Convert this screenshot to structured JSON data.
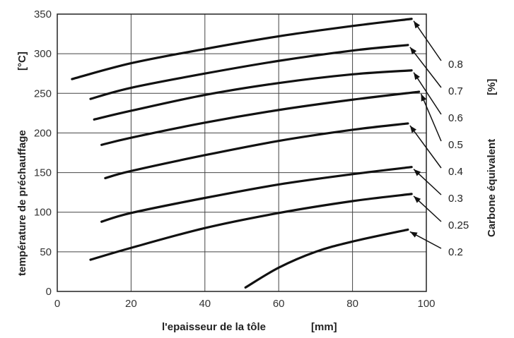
{
  "chart_data": {
    "type": "line",
    "xlabel": "l'epaisseur de la tôle",
    "xunit": "[mm]",
    "ylabel": "température de préchauffage",
    "yunit": "[°C]",
    "right_label": "Carbone équivalent",
    "right_unit": "[%]",
    "xlim": [
      0,
      100
    ],
    "ylim": [
      0,
      350
    ],
    "xticks": [
      0,
      20,
      40,
      60,
      80,
      100
    ],
    "yticks": [
      0,
      50,
      100,
      150,
      200,
      250,
      300,
      350
    ],
    "grid": true,
    "series": [
      {
        "name": "0.8",
        "x": [
          4,
          20,
          40,
          60,
          80,
          96
        ],
        "y": [
          268,
          288,
          306,
          322,
          335,
          344
        ]
      },
      {
        "name": "0.7",
        "x": [
          9,
          20,
          40,
          60,
          80,
          95
        ],
        "y": [
          243,
          257,
          275,
          291,
          304,
          311
        ]
      },
      {
        "name": "0.6",
        "x": [
          10,
          20,
          40,
          60,
          80,
          96
        ],
        "y": [
          217,
          228,
          248,
          263,
          274,
          279
        ]
      },
      {
        "name": "0.5",
        "x": [
          12,
          20,
          40,
          60,
          80,
          98
        ],
        "y": [
          185,
          194,
          213,
          229,
          242,
          252
        ]
      },
      {
        "name": "0.4",
        "x": [
          13,
          20,
          40,
          60,
          80,
          95
        ],
        "y": [
          143,
          152,
          172,
          190,
          204,
          212
        ]
      },
      {
        "name": "0.3",
        "x": [
          12,
          20,
          40,
          60,
          80,
          96
        ],
        "y": [
          88,
          99,
          118,
          135,
          148,
          157
        ]
      },
      {
        "name": "0.25",
        "x": [
          9,
          20,
          40,
          60,
          80,
          96
        ],
        "y": [
          40,
          55,
          80,
          99,
          114,
          123
        ]
      },
      {
        "name": "0.2",
        "x": [
          51,
          60,
          70,
          80,
          95
        ],
        "y": [
          5,
          30,
          50,
          63,
          78
        ]
      }
    ]
  }
}
